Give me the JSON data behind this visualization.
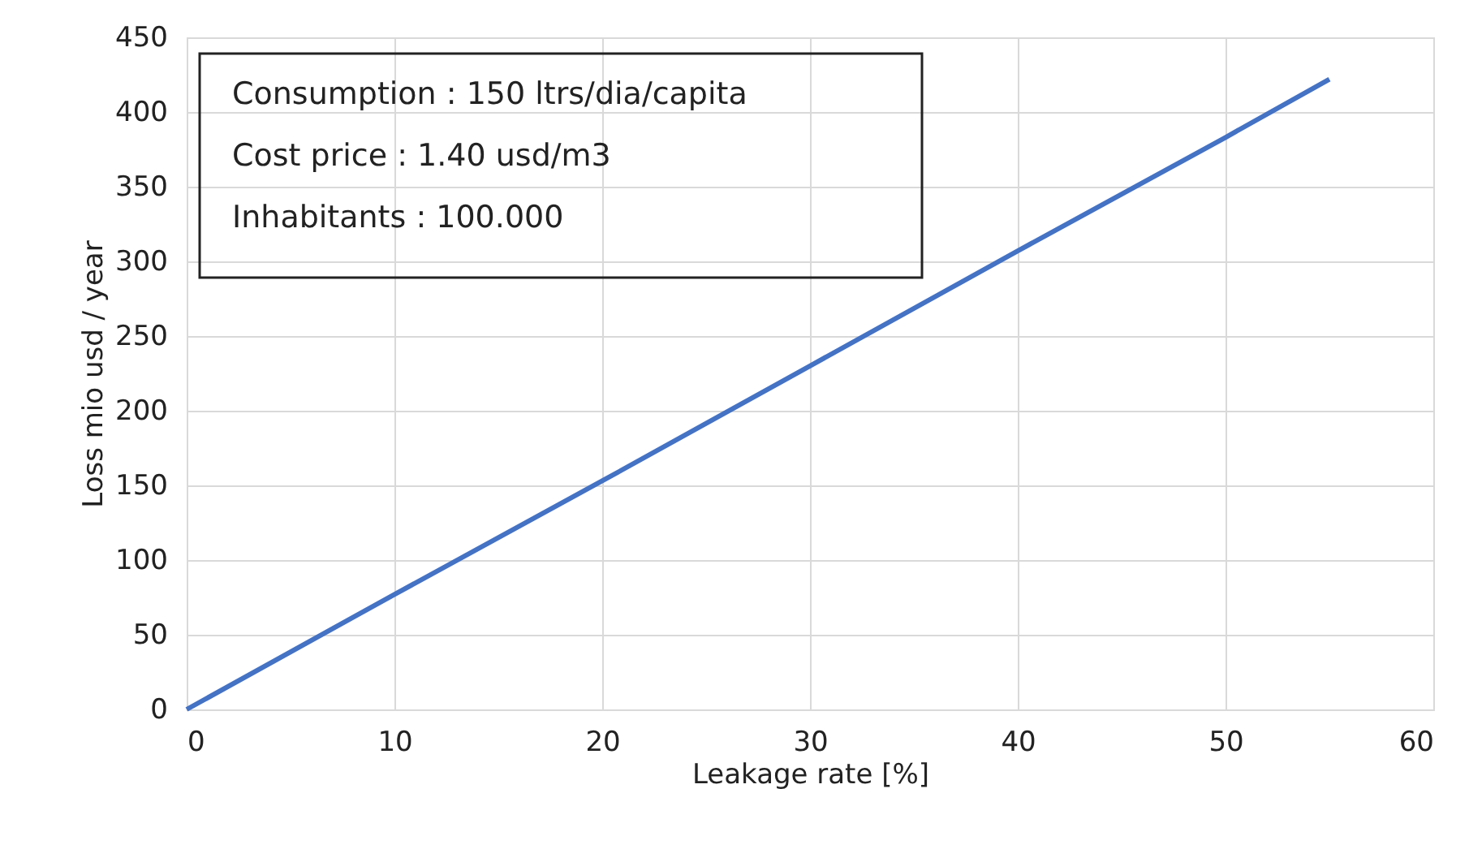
{
  "chart_data": {
    "type": "line",
    "xlabel": "Leakage rate [%]",
    "ylabel": "Loss mio usd / year",
    "x": [
      0,
      10,
      20,
      30,
      40,
      50,
      55
    ],
    "series": [
      {
        "color": "#4472c4",
        "values": [
          0,
          77,
          153,
          230,
          307,
          383,
          422
        ]
      }
    ],
    "xlim": [
      0,
      60
    ],
    "xticks": [
      0,
      10,
      20,
      30,
      40,
      50,
      60
    ],
    "ylim": [
      0,
      450
    ],
    "yticks": [
      0,
      50,
      100,
      150,
      200,
      250,
      300,
      350,
      400,
      450
    ],
    "grid": true,
    "marker": "none",
    "line_style": "solid",
    "annotations": [
      "Consumption : 150 ltrs/dia/capita",
      "Cost price : 1.40 usd/m3",
      "Inhabitants : 100.000"
    ]
  }
}
